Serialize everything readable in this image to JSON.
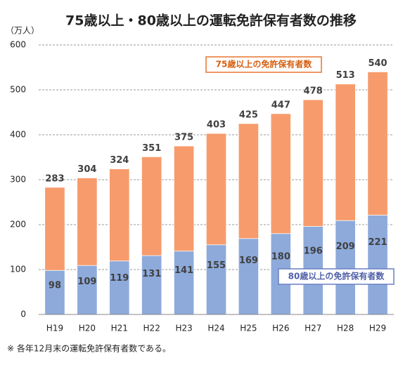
{
  "chart_data": {
    "type": "bar",
    "barmode": "overlay",
    "title": "75歳以上・80歳以上の運転免許保有者数の推移",
    "y_unit_label": "（万人）",
    "categories": [
      "H19",
      "H20",
      "H21",
      "H22",
      "H23",
      "H24",
      "H25",
      "H26",
      "H27",
      "H28",
      "H29"
    ],
    "series": [
      {
        "name": "75歳以上の免許保有者数",
        "color": "#f79b6c",
        "values": [
          283,
          304,
          324,
          351,
          375,
          403,
          425,
          447,
          478,
          513,
          540
        ]
      },
      {
        "name": "80歳以上の免許保有者数",
        "color": "#8eaadb",
        "values": [
          98,
          109,
          119,
          131,
          141,
          155,
          169,
          180,
          196,
          209,
          221
        ]
      }
    ],
    "ylim": [
      0,
      600
    ],
    "yticks": [
      0,
      100,
      200,
      300,
      400,
      500,
      600
    ],
    "grid": true,
    "note": "※ 各年12月末の運転免許保有者数である。"
  }
}
